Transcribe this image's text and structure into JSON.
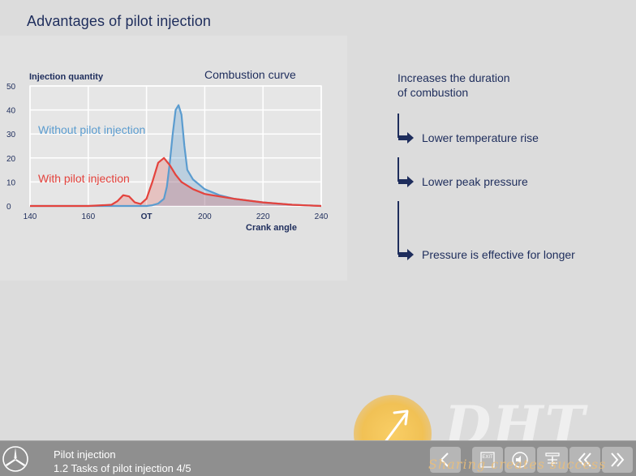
{
  "page": {
    "title": "Advantages of pilot injection"
  },
  "chart_data": {
    "type": "line",
    "title": "Combustion curve",
    "ylabel": "Injection quantity",
    "xlabel": "Crank angle",
    "xlim": [
      140,
      240
    ],
    "ylim": [
      0,
      50
    ],
    "x_ticks": [
      "140",
      "160",
      "OT",
      "200",
      "220",
      "240"
    ],
    "y_ticks": [
      "0",
      "10",
      "20",
      "30",
      "40",
      "50"
    ],
    "grid": true,
    "series": [
      {
        "name": "Without pilot injection",
        "color": "#5b9ccf",
        "x": [
          140,
          160,
          170,
          176,
          180,
          182,
          184,
          186,
          187,
          188,
          189,
          190,
          191,
          192,
          193,
          194,
          196,
          200,
          205,
          210,
          220,
          230,
          240
        ],
        "y": [
          0,
          0,
          0,
          0,
          0,
          0.3,
          1,
          3,
          8,
          18,
          30,
          40,
          42,
          38,
          25,
          15,
          11,
          7,
          4.5,
          3,
          1.5,
          0.5,
          0
        ]
      },
      {
        "name": "With pilot injection",
        "color": "#e4433d",
        "x": [
          140,
          160,
          168,
          170,
          172,
          174,
          176,
          178,
          180,
          182,
          184,
          186,
          188,
          190,
          192,
          196,
          200,
          205,
          210,
          220,
          230,
          240
        ],
        "y": [
          0,
          0,
          0.5,
          2,
          4.5,
          4,
          1.5,
          0.8,
          3,
          10,
          18,
          20,
          17,
          13,
          10,
          7,
          5,
          4,
          3,
          1.5,
          0.5,
          0
        ]
      }
    ]
  },
  "effects": {
    "heading_line1": "Increases the duration",
    "heading_line2": "of combustion",
    "items": [
      {
        "label": "Lower temperature rise"
      },
      {
        "label": "Lower peak pressure"
      },
      {
        "label": "Pressure is effective for longer"
      }
    ]
  },
  "watermark": {
    "text": "DHT",
    "tagline": "Sharing creates success"
  },
  "footer": {
    "line1": "Pilot injection",
    "line2": "1.2 Tasks of pilot injection 4/5",
    "exit_label": "EXIT"
  },
  "colors": {
    "title": "#1e2d5c",
    "without_series": "#5b9ccf",
    "with_series": "#e4433d",
    "footer_bg": "#8f8f8f",
    "background": "#dcdcdc"
  },
  "icons": [
    "mercedes-star-icon",
    "back-arrow-icon",
    "exit-icon",
    "audio-icon",
    "contents-icon",
    "first-page-icon",
    "next-page-icon",
    "cursor-arrow-icon",
    "right-arrow-icon"
  ]
}
